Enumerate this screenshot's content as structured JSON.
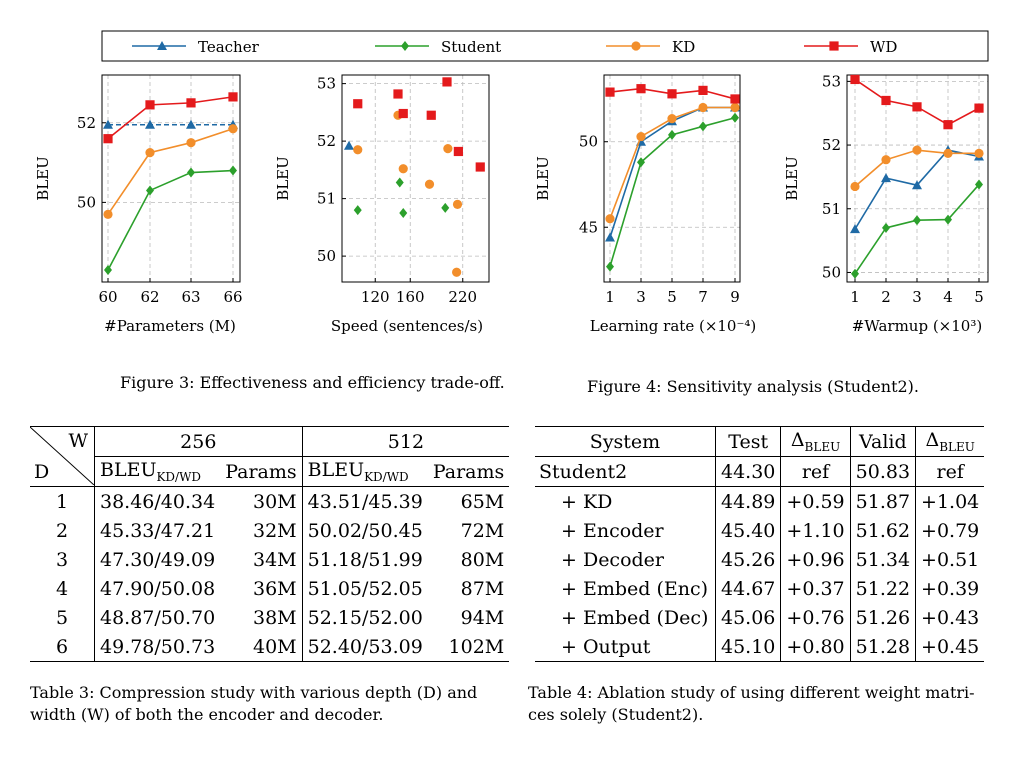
{
  "legend": [
    {
      "name": "Teacher",
      "color": "#1f6aa5",
      "marker": "triangle"
    },
    {
      "name": "Student",
      "color": "#2ca02c",
      "marker": "diamond"
    },
    {
      "name": "KD",
      "color": "#f28e2b",
      "marker": "circle"
    },
    {
      "name": "WD",
      "color": "#e41a1c",
      "marker": "square"
    }
  ],
  "chart_data": [
    {
      "type": "line",
      "xlabel": "#Parameters (M)",
      "ylabel": "BLEU",
      "x": [
        60,
        62,
        63,
        66
      ],
      "xticks": [
        "60",
        "62",
        "63",
        "66"
      ],
      "yticks": [
        50,
        52
      ],
      "ylim": [
        48,
        53.2
      ],
      "grid": true,
      "series": [
        {
          "name": "Teacher",
          "style": "dashed",
          "values": [
            51.95,
            51.95,
            51.95,
            51.95
          ]
        },
        {
          "name": "Student",
          "values": [
            48.3,
            50.3,
            50.75,
            50.8
          ]
        },
        {
          "name": "KD",
          "values": [
            49.7,
            51.25,
            51.5,
            51.85
          ]
        },
        {
          "name": "WD",
          "values": [
            51.6,
            52.45,
            52.5,
            52.65
          ]
        }
      ]
    },
    {
      "type": "scatter",
      "xlabel": "Speed (sentences/s)",
      "ylabel": "BLEU",
      "xticks": [
        120,
        160,
        220
      ],
      "yticks": [
        50,
        51,
        52,
        53
      ],
      "xlim": [
        82,
        250
      ],
      "ylim": [
        49.55,
        53.15
      ],
      "grid": true,
      "series": [
        {
          "name": "Teacher",
          "x": [
            90
          ],
          "y": [
            51.92
          ]
        },
        {
          "name": "Student",
          "x": [
            100,
            148,
            152,
            200
          ],
          "y": [
            50.8,
            51.28,
            50.75,
            50.84
          ]
        },
        {
          "name": "KD",
          "x": [
            100,
            146,
            152,
            182,
            203,
            213,
            214
          ],
          "y": [
            51.85,
            52.45,
            51.52,
            51.25,
            51.87,
            49.72,
            50.9
          ]
        },
        {
          "name": "WD",
          "x": [
            100,
            146,
            152,
            184,
            202,
            215,
            240
          ],
          "y": [
            52.65,
            52.82,
            52.48,
            52.45,
            53.03,
            51.82,
            51.55
          ]
        }
      ]
    },
    {
      "type": "line",
      "xlabel": "Learning rate (×10⁻⁴)",
      "ylabel": "BLEU",
      "x": [
        1,
        3,
        5,
        7,
        9
      ],
      "xticks": [
        "1",
        "3",
        "5",
        "7",
        "9"
      ],
      "yticks": [
        45,
        50
      ],
      "ylim": [
        41.8,
        53.9
      ],
      "grid": true,
      "series": [
        {
          "name": "Teacher",
          "values": [
            44.4,
            50.0,
            51.2,
            52.0,
            52.0
          ]
        },
        {
          "name": "Student",
          "values": [
            42.7,
            48.8,
            50.4,
            50.9,
            51.4
          ]
        },
        {
          "name": "KD",
          "values": [
            45.5,
            50.3,
            51.35,
            52.0,
            52.0
          ]
        },
        {
          "name": "WD",
          "values": [
            52.9,
            53.1,
            52.8,
            53.0,
            52.5
          ]
        }
      ]
    },
    {
      "type": "line",
      "xlabel": "#Warmup (×10³)",
      "ylabel": "BLEU",
      "x": [
        1,
        2,
        3,
        4,
        5
      ],
      "xticks": [
        "1",
        "2",
        "3",
        "4",
        "5"
      ],
      "yticks": [
        50,
        51,
        52,
        53
      ],
      "ylim": [
        49.85,
        53.1
      ],
      "grid": true,
      "series": [
        {
          "name": "Teacher",
          "values": [
            50.68,
            51.48,
            51.37,
            51.92,
            51.82
          ]
        },
        {
          "name": "Student",
          "values": [
            49.98,
            50.7,
            50.82,
            50.83,
            51.38
          ]
        },
        {
          "name": "KD",
          "values": [
            51.35,
            51.77,
            51.92,
            51.87,
            51.87
          ]
        },
        {
          "name": "WD",
          "values": [
            53.03,
            52.7,
            52.6,
            52.32,
            52.58
          ]
        }
      ]
    }
  ],
  "captions": {
    "fig3": "Figure 3: Effectiveness and efficiency trade-off.",
    "fig4": "Figure 4: Sensitivity analysis (Student2).",
    "tab3_line1": "Table 3: Compression study with various depth (D) and",
    "tab3_line2": "width (W) of both the encoder and decoder.",
    "tab4_line1": "Table 4: Ablation study of using different weight matri-",
    "tab4_line2": "ces solely (Student2)."
  },
  "table3": {
    "w_label": "W",
    "d_label": "D",
    "group1": "256",
    "group2": "512",
    "col_bleu": "BLEU",
    "col_bleu_sub": "KD/WD",
    "col_params": "Params",
    "rows": [
      [
        "1",
        "38.46/40.34",
        "30M",
        "43.51/45.39",
        "65M"
      ],
      [
        "2",
        "45.33/47.21",
        "32M",
        "50.02/50.45",
        "72M"
      ],
      [
        "3",
        "47.30/49.09",
        "34M",
        "51.18/51.99",
        "80M"
      ],
      [
        "4",
        "47.90/50.08",
        "36M",
        "51.05/52.05",
        "87M"
      ],
      [
        "5",
        "48.87/50.70",
        "38M",
        "52.15/52.00",
        "94M"
      ],
      [
        "6",
        "49.78/50.73",
        "40M",
        "52.40/53.09",
        "102M"
      ]
    ]
  },
  "table4": {
    "headers": {
      "system": "System",
      "test": "Test",
      "delta": "Δ",
      "delta_sub": "BLEU",
      "valid": "Valid"
    },
    "rows": [
      [
        "Student2",
        "44.30",
        "ref",
        "50.83",
        "ref"
      ],
      [
        "+ KD",
        "44.89",
        "+0.59",
        "51.87",
        "+1.04"
      ],
      [
        "+ Encoder",
        "45.40",
        "+1.10",
        "51.62",
        "+0.79"
      ],
      [
        "+ Decoder",
        "45.26",
        "+0.96",
        "51.34",
        "+0.51"
      ],
      [
        "+ Embed (Enc)",
        "44.67",
        "+0.37",
        "51.22",
        "+0.39"
      ],
      [
        "+ Embed (Dec)",
        "45.06",
        "+0.76",
        "51.26",
        "+0.43"
      ],
      [
        "+ Output",
        "45.10",
        "+0.80",
        "51.28",
        "+0.45"
      ]
    ]
  }
}
